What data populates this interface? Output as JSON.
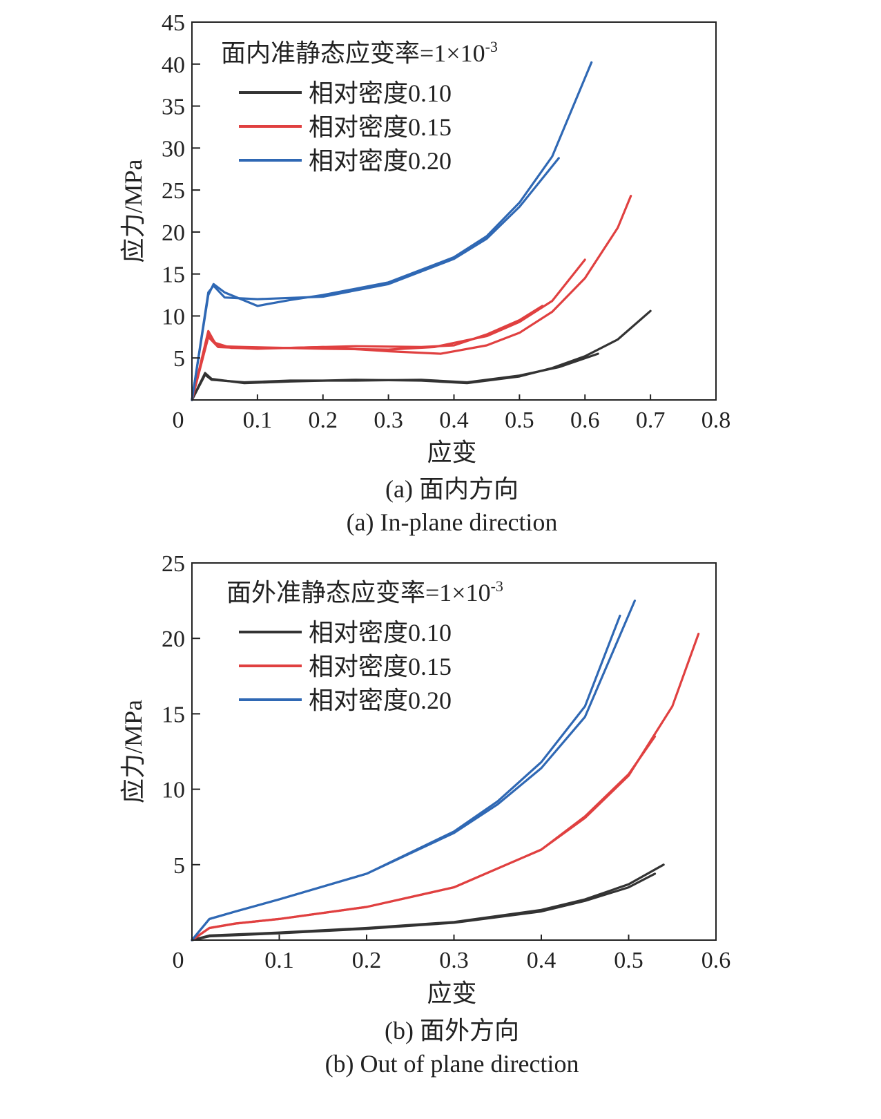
{
  "chart_data": [
    {
      "type": "line",
      "title": "面内准静态应变率=1×10",
      "title_sup": "-3",
      "xlabel": "应变",
      "ylabel": "应力/MPa",
      "caption_cn": "(a) 面内方向",
      "caption_en": "(a) In-plane direction",
      "xlim": [
        0,
        0.8
      ],
      "ylim": [
        0,
        45
      ],
      "xticks": [
        "0.1",
        "0.2",
        "0.3",
        "0.4",
        "0.5",
        "0.6",
        "0.7",
        "0.8"
      ],
      "yticks": [
        "5",
        "10",
        "15",
        "20",
        "25",
        "30",
        "35",
        "40",
        "45"
      ],
      "origin_label": "0",
      "legend_position": "top-left",
      "series": [
        {
          "name": "相对密度0.10",
          "color": "#333333",
          "runs": [
            [
              [
                0,
                0
              ],
              [
                0.02,
                3.2
              ],
              [
                0.03,
                2.5
              ],
              [
                0.08,
                2.0
              ],
              [
                0.15,
                2.2
              ],
              [
                0.25,
                2.4
              ],
              [
                0.35,
                2.3
              ],
              [
                0.42,
                2.0
              ],
              [
                0.5,
                2.8
              ],
              [
                0.55,
                3.8
              ],
              [
                0.6,
                5.2
              ],
              [
                0.65,
                7.2
              ],
              [
                0.7,
                10.6
              ]
            ],
            [
              [
                0,
                0
              ],
              [
                0.02,
                3.0
              ],
              [
                0.03,
                2.4
              ],
              [
                0.08,
                2.1
              ],
              [
                0.15,
                2.3
              ],
              [
                0.25,
                2.3
              ],
              [
                0.35,
                2.4
              ],
              [
                0.42,
                2.1
              ],
              [
                0.5,
                2.9
              ],
              [
                0.56,
                3.9
              ],
              [
                0.62,
                5.5
              ]
            ]
          ]
        },
        {
          "name": "相对密度0.15",
          "color": "#e04040",
          "runs": [
            [
              [
                0,
                0
              ],
              [
                0.025,
                8.2
              ],
              [
                0.035,
                6.8
              ],
              [
                0.06,
                6.2
              ],
              [
                0.15,
                6.2
              ],
              [
                0.25,
                6.4
              ],
              [
                0.35,
                6.3
              ],
              [
                0.4,
                6.5
              ],
              [
                0.45,
                7.8
              ],
              [
                0.5,
                9.5
              ],
              [
                0.535,
                11.2
              ]
            ],
            [
              [
                0,
                0
              ],
              [
                0.025,
                7.8
              ],
              [
                0.04,
                6.4
              ],
              [
                0.08,
                6.3
              ],
              [
                0.2,
                6.1
              ],
              [
                0.3,
                6.0
              ],
              [
                0.37,
                6.3
              ],
              [
                0.45,
                7.6
              ],
              [
                0.5,
                9.3
              ],
              [
                0.55,
                11.8
              ],
              [
                0.6,
                16.7
              ]
            ],
            [
              [
                0,
                0
              ],
              [
                0.025,
                7.5
              ],
              [
                0.04,
                6.3
              ],
              [
                0.1,
                6.1
              ],
              [
                0.2,
                6.3
              ],
              [
                0.3,
                5.8
              ],
              [
                0.38,
                5.5
              ],
              [
                0.45,
                6.5
              ],
              [
                0.5,
                8.0
              ],
              [
                0.55,
                10.5
              ],
              [
                0.6,
                14.5
              ],
              [
                0.65,
                20.5
              ],
              [
                0.67,
                24.3
              ]
            ]
          ]
        },
        {
          "name": "相对密度0.20",
          "color": "#2f68b4",
          "runs": [
            [
              [
                0,
                0
              ],
              [
                0.025,
                12.5
              ],
              [
                0.033,
                13.8
              ],
              [
                0.05,
                12.8
              ],
              [
                0.1,
                11.2
              ],
              [
                0.15,
                11.9
              ],
              [
                0.2,
                12.5
              ],
              [
                0.3,
                14.0
              ],
              [
                0.4,
                17.0
              ],
              [
                0.45,
                19.5
              ],
              [
                0.5,
                23.5
              ],
              [
                0.55,
                29.0
              ],
              [
                0.61,
                40.2
              ]
            ],
            [
              [
                0,
                0
              ],
              [
                0.025,
                12.8
              ],
              [
                0.033,
                13.6
              ],
              [
                0.05,
                12.2
              ],
              [
                0.1,
                12.0
              ],
              [
                0.2,
                12.3
              ],
              [
                0.3,
                13.8
              ],
              [
                0.4,
                16.8
              ],
              [
                0.45,
                19.2
              ],
              [
                0.5,
                23.0
              ],
              [
                0.56,
                28.8
              ]
            ]
          ]
        }
      ]
    },
    {
      "type": "line",
      "title": "面外准静态应变率=1×10",
      "title_sup": "-3",
      "xlabel": "应变",
      "ylabel": "应力/MPa",
      "caption_cn": "(b) 面外方向",
      "caption_en": "(b) Out of plane direction",
      "xlim": [
        0,
        0.6
      ],
      "ylim": [
        0,
        25
      ],
      "xticks": [
        "0.1",
        "0.2",
        "0.3",
        "0.4",
        "0.5",
        "0.6"
      ],
      "yticks": [
        "5",
        "10",
        "15",
        "20",
        "25"
      ],
      "origin_label": "0",
      "legend_position": "top-left",
      "series": [
        {
          "name": "相对密度0.10",
          "color": "#333333",
          "runs": [
            [
              [
                0,
                0
              ],
              [
                0.02,
                0.3
              ],
              [
                0.1,
                0.5
              ],
              [
                0.2,
                0.8
              ],
              [
                0.3,
                1.2
              ],
              [
                0.4,
                2.0
              ],
              [
                0.45,
                2.7
              ],
              [
                0.5,
                3.7
              ],
              [
                0.54,
                5.0
              ]
            ],
            [
              [
                0,
                0
              ],
              [
                0.02,
                0.25
              ],
              [
                0.1,
                0.45
              ],
              [
                0.2,
                0.75
              ],
              [
                0.3,
                1.15
              ],
              [
                0.4,
                1.9
              ],
              [
                0.45,
                2.6
              ],
              [
                0.5,
                3.5
              ],
              [
                0.53,
                4.4
              ]
            ]
          ]
        },
        {
          "name": "相对密度0.15",
          "color": "#e04040",
          "runs": [
            [
              [
                0,
                0
              ],
              [
                0.02,
                0.8
              ],
              [
                0.05,
                1.1
              ],
              [
                0.1,
                1.4
              ],
              [
                0.2,
                2.2
              ],
              [
                0.3,
                3.5
              ],
              [
                0.4,
                6.0
              ],
              [
                0.45,
                8.2
              ],
              [
                0.5,
                11.0
              ],
              [
                0.53,
                13.5
              ]
            ],
            [
              [
                0,
                0
              ],
              [
                0.02,
                0.8
              ],
              [
                0.05,
                1.1
              ],
              [
                0.1,
                1.4
              ],
              [
                0.2,
                2.2
              ],
              [
                0.3,
                3.5
              ],
              [
                0.4,
                6.0
              ],
              [
                0.45,
                8.1
              ],
              [
                0.5,
                10.9
              ],
              [
                0.55,
                15.5
              ],
              [
                0.58,
                20.3
              ]
            ]
          ]
        },
        {
          "name": "相对密度0.20",
          "color": "#2f68b4",
          "runs": [
            [
              [
                0,
                0
              ],
              [
                0.02,
                1.4
              ],
              [
                0.05,
                1.9
              ],
              [
                0.1,
                2.7
              ],
              [
                0.2,
                4.4
              ],
              [
                0.3,
                7.2
              ],
              [
                0.35,
                9.2
              ],
              [
                0.4,
                11.8
              ],
              [
                0.45,
                15.5
              ],
              [
                0.49,
                21.5
              ]
            ],
            [
              [
                0,
                0
              ],
              [
                0.02,
                1.4
              ],
              [
                0.05,
                1.9
              ],
              [
                0.1,
                2.7
              ],
              [
                0.2,
                4.4
              ],
              [
                0.3,
                7.1
              ],
              [
                0.35,
                9.0
              ],
              [
                0.4,
                11.4
              ],
              [
                0.45,
                14.8
              ],
              [
                0.507,
                22.5
              ]
            ]
          ]
        }
      ]
    }
  ]
}
